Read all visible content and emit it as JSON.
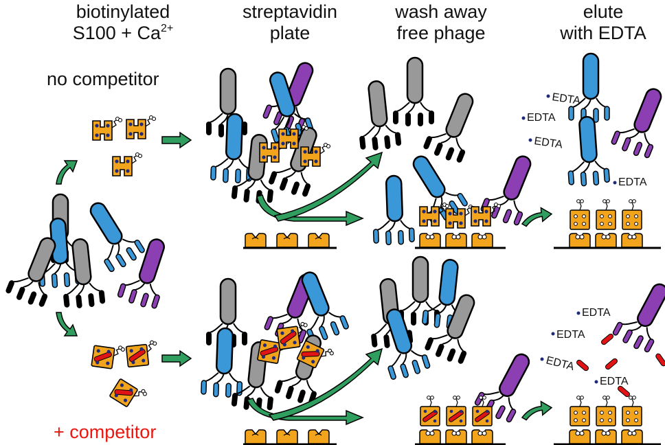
{
  "headers": {
    "step1_line1": "biotinylated",
    "step1_line2": "S100 + Ca",
    "step1_sup": "2+",
    "step2_line1": "streptavidin",
    "step2_line2": "plate",
    "step3_line1": "wash away",
    "step3_line2": "free phage",
    "step4_line1": "elute",
    "step4_line2": "with EDTA"
  },
  "conditions": {
    "top": "no competitor",
    "bottom": "+ competitor"
  },
  "reagent_label": "EDTA",
  "colors": {
    "phage_gray": "#999999",
    "phage_blue": "#3a98d9",
    "phage_purple": "#8c3fb2",
    "s100_orange": "#f2a51c",
    "calcium_navy": "#1f2a7a",
    "competitor_red": "#e01414",
    "arrow_green": "#2f9e5e",
    "competitor_text": "#e8170f"
  }
}
